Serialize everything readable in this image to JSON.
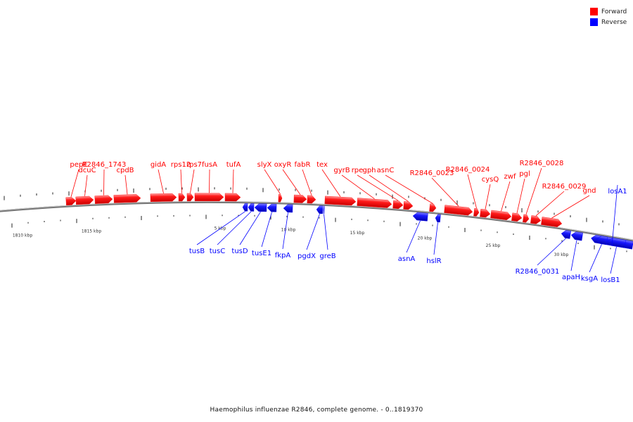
{
  "legend": [
    {
      "label": "Forward",
      "color": "#ff0000"
    },
    {
      "label": "Reverse",
      "color": "#0000ff"
    }
  ],
  "caption": "Haemophilus influenzae R2846, complete genome. - 0..1819370",
  "colors": {
    "forward": "#ff0000",
    "reverse": "#0000ff",
    "backbone": "#888888"
  },
  "scale_labels": [
    "1810 kbp",
    "1815 kbp",
    "5 kbp",
    "10 kbp",
    "15 kbp",
    "20 kbp",
    "25 kbp",
    "30 kbp"
  ],
  "genes": [
    {
      "name": "pepE",
      "strand": "forward"
    },
    {
      "name": "dcuC",
      "strand": "forward"
    },
    {
      "name": "R2846_1743",
      "strand": "forward"
    },
    {
      "name": "cpdB",
      "strand": "forward"
    },
    {
      "name": "gidA",
      "strand": "forward"
    },
    {
      "name": "rps12",
      "strand": "forward"
    },
    {
      "name": "rps7",
      "strand": "forward"
    },
    {
      "name": "fusA",
      "strand": "forward"
    },
    {
      "name": "tufA",
      "strand": "forward"
    },
    {
      "name": "slyX",
      "strand": "forward"
    },
    {
      "name": "oxyR",
      "strand": "forward"
    },
    {
      "name": "fabR",
      "strand": "forward"
    },
    {
      "name": "tex",
      "strand": "forward"
    },
    {
      "name": "gyrB",
      "strand": "forward"
    },
    {
      "name": "rpe",
      "strand": "forward"
    },
    {
      "name": "gph",
      "strand": "forward"
    },
    {
      "name": "asnC",
      "strand": "forward"
    },
    {
      "name": "R2846_0023",
      "strand": "forward"
    },
    {
      "name": "R2846_0024",
      "strand": "forward"
    },
    {
      "name": "cysQ",
      "strand": "forward"
    },
    {
      "name": "zwf",
      "strand": "forward"
    },
    {
      "name": "pgl",
      "strand": "forward"
    },
    {
      "name": "R2846_0028",
      "strand": "forward"
    },
    {
      "name": "R2846_0029",
      "strand": "forward"
    },
    {
      "name": "gnd",
      "strand": "forward"
    },
    {
      "name": "losA1",
      "strand": "reverse"
    },
    {
      "name": "tusB",
      "strand": "reverse"
    },
    {
      "name": "tusC",
      "strand": "reverse"
    },
    {
      "name": "tusD",
      "strand": "reverse"
    },
    {
      "name": "tusE1",
      "strand": "reverse"
    },
    {
      "name": "fkpA",
      "strand": "reverse"
    },
    {
      "name": "pgdX",
      "strand": "reverse"
    },
    {
      "name": "greB",
      "strand": "reverse"
    },
    {
      "name": "asnA",
      "strand": "reverse"
    },
    {
      "name": "hslR",
      "strand": "reverse"
    },
    {
      "name": "R2846_0031",
      "strand": "reverse"
    },
    {
      "name": "apaH",
      "strand": "reverse"
    },
    {
      "name": "ksgA",
      "strand": "reverse"
    },
    {
      "name": "losB1",
      "strand": "reverse"
    }
  ]
}
